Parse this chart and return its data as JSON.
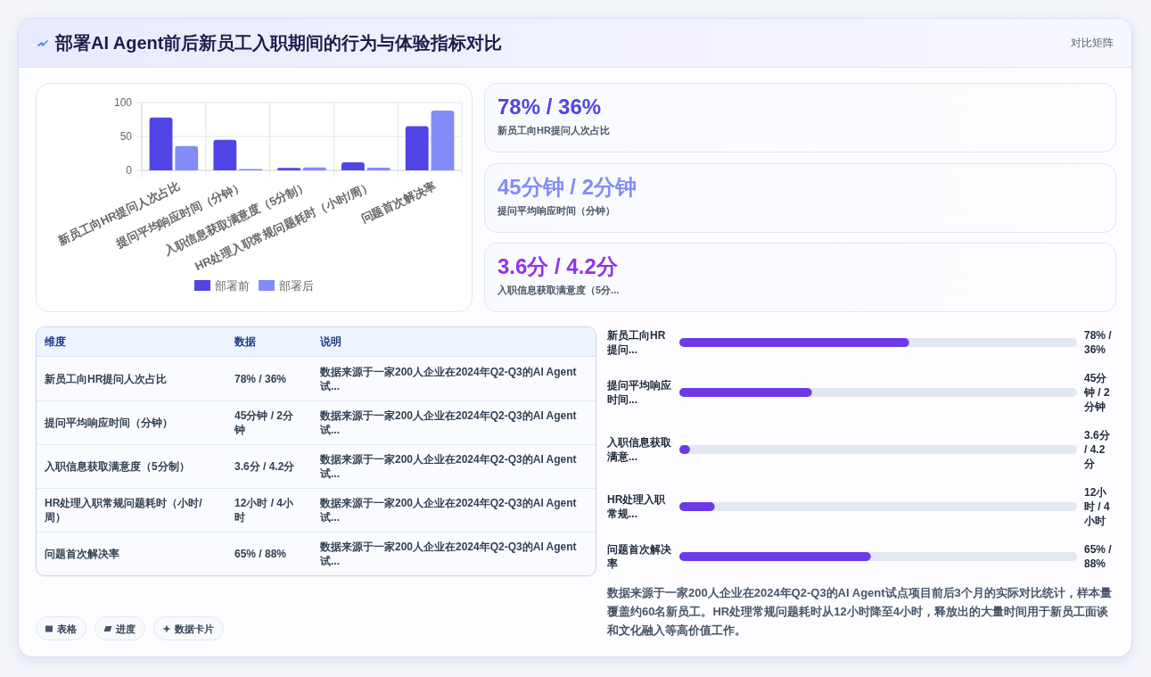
{
  "chart_data": [
    {
      "type": "other",
      "title": "部署AI Agent前后新员工入职期间的行为与体验指标对比",
      "annotations": [
        "对比矩阵"
      ]
    },
    {
      "type": "bar",
      "categories": [
        "新员工向HR提问人次占比",
        "提问平均响应时间（分钟）",
        "入职信息获取满意度（5分制）",
        "HR处理入职常规问题耗时（小时/周）",
        "问题首次解决率"
      ],
      "series": [
        {
          "name": "部署前",
          "color": "#4f46e5",
          "values": [
            78,
            45,
            3.6,
            12,
            65
          ]
        },
        {
          "name": "部署后",
          "color": "#818cf8",
          "values": [
            36,
            2,
            4.2,
            4,
            88
          ]
        }
      ],
      "ylim": [
        0,
        100
      ],
      "yticks": [
        0,
        50,
        100
      ],
      "grid": true,
      "legend": "bottom"
    },
    {
      "type": "other",
      "annotations": [
        "78% / 36%",
        "新员工向HR提问人次占比",
        "45分钟 / 2分钟",
        "提问平均响应时间（分钟）",
        "3.6分 / 4.2分",
        "入职信息获取满意度（5分..."
      ]
    },
    {
      "type": "other",
      "categories": [
        "维度",
        "数据",
        "说明"
      ],
      "cell_labels": [
        [
          "新员工向HR提问人次占比",
          "78% / 36%",
          "数据来源于一家200人企业在2024年Q2-Q3的AI Agent试..."
        ],
        [
          "提问平均响应时间（分钟）",
          "45分钟 / 2分钟",
          "数据来源于一家200人企业在2024年Q2-Q3的AI Agent试..."
        ],
        [
          "入职信息获取满意度（5分制）",
          "3.6分 / 4.2分",
          "数据来源于一家200人企业在2024年Q2-Q3的AI Agent试..."
        ],
        [
          "HR处理入职常规问题耗时（小时/周）",
          "12小时 / 4小时",
          "数据来源于一家200人企业在2024年Q2-Q3的AI Agent试..."
        ],
        [
          "问题首次解决率",
          "65% / 88%",
          "数据来源于一家200人企业在2024年Q2-Q3的AI Agent试..."
        ]
      ]
    },
    {
      "type": "bar",
      "orientation": "horizontal",
      "categories": [
        "新员工向HR提问...",
        "提问平均响应时间...",
        "入职信息获取满意...",
        "HR处理入职常规...",
        "问题首次解决率"
      ],
      "series": [
        {
          "color": "#6d3ae6",
          "values": [
            78,
            45,
            3.6,
            12,
            65
          ],
          "value_labels": [
            "78% / 36%",
            "45分钟 / 2分钟",
            "3.6分 / 4.2分",
            "12小时 / 4小时",
            "65% / 88%"
          ]
        }
      ],
      "xlim": [
        0,
        135
      ],
      "annotations": [
        "数据来源于一家200人企业在2024年Q2-Q3的AI Agent试点项目前后3个月的实际对比统计，样本量覆盖约60名新员工。HR处理常规问题耗时从12小时降至4小时，释放出的大量时间用于新员工面谈和文化融入等高价值工作。"
      ]
    },
    {
      "type": "other",
      "annotations": [
        "表格",
        "进度",
        "数据卡片"
      ]
    }
  ]
}
